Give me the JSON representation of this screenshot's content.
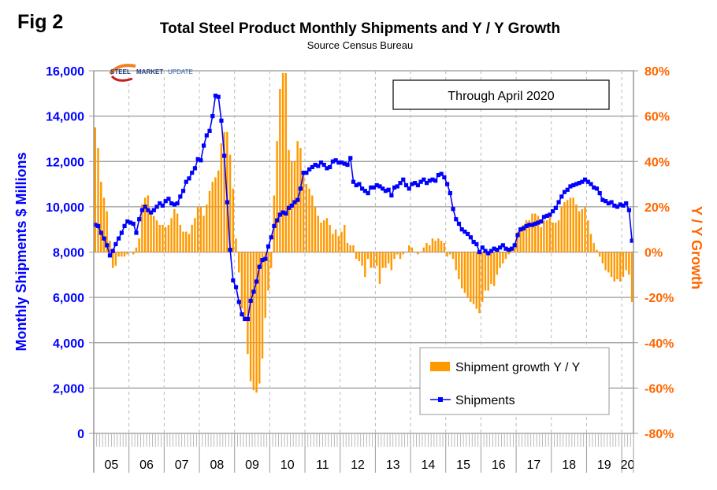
{
  "figure_label": "Fig 2",
  "logo_text": {
    "steel": "STEEL",
    "market": "MARKET",
    "update": "UPDATE"
  },
  "chart_data": {
    "type": "bar+line",
    "title": "Total Steel Product Monthly Shipments and Y / Y Growth",
    "subtitle": "Source Census Bureau",
    "annotation": "Through April 2020",
    "ylabel_left": "Monthly Shipments $ Millions",
    "ylabel_right": "Y / Y Growth",
    "ylim_left": [
      0,
      16000
    ],
    "ylim_right": [
      -80,
      80
    ],
    "yticks_left": [
      "0",
      "2,000",
      "4,000",
      "6,000",
      "8,000",
      "10,000",
      "12,000",
      "14,000",
      "16,000"
    ],
    "yticks_right": [
      "-80%",
      "-60%",
      "-40%",
      "-20%",
      "0%",
      "20%",
      "40%",
      "60%",
      "80%"
    ],
    "xticks": [
      "05",
      "06",
      "07",
      "08",
      "09",
      "10",
      "11",
      "12",
      "13",
      "14",
      "15",
      "16",
      "17",
      "18",
      "19",
      "20"
    ],
    "start": "2005-01",
    "end": "2020-04",
    "grid": true,
    "legend_position": "bottom-right",
    "colors": {
      "bars": "#FF9900",
      "line": "#0000FF",
      "left_axis": "#0000FF",
      "right_axis": "#FF6600"
    },
    "series": [
      {
        "name": "Shipment growth Y / Y",
        "type": "bar",
        "axis": "right",
        "unit": "%",
        "values": [
          55,
          46,
          31,
          24,
          18,
          5,
          -7,
          -6,
          -2,
          -2,
          -2,
          -1,
          0,
          -1,
          2,
          6,
          21,
          24,
          25,
          18,
          16,
          14,
          12,
          12,
          11,
          12,
          15,
          19,
          17,
          12,
          9,
          9,
          8,
          12,
          15,
          20,
          20,
          16,
          21,
          27,
          31,
          33,
          36,
          48,
          53,
          53,
          43,
          28,
          6,
          -9,
          -25,
          -30,
          -45,
          -57,
          -61,
          -62,
          -58,
          -47,
          -29,
          -17,
          -7,
          25,
          49,
          72,
          79,
          79,
          45,
          40,
          40,
          49,
          46,
          35,
          30,
          28,
          25,
          20,
          16,
          13,
          14,
          15,
          12,
          8,
          10,
          7,
          9,
          12,
          4,
          3,
          3,
          -3,
          -4,
          -6,
          -11,
          -3,
          -7,
          -7,
          -6,
          -14,
          -7,
          -7,
          -5,
          -8,
          -3,
          -1,
          -3,
          -1,
          0,
          3,
          2,
          0,
          -1,
          0,
          2,
          4,
          3,
          6,
          5,
          6,
          5,
          4,
          -2,
          -1,
          -3,
          -8,
          -12,
          -16,
          -18,
          -20,
          -22,
          -23,
          -25,
          -27,
          -22,
          -17,
          -17,
          -14,
          -15,
          -10,
          -7,
          -5,
          -3,
          -1,
          1,
          2,
          9,
          11,
          12,
          14,
          14,
          17,
          17,
          16,
          11,
          14,
          14,
          16,
          13,
          13,
          14,
          20,
          22,
          23,
          24,
          24,
          21,
          18,
          19,
          20,
          14,
          8,
          4,
          1,
          -2,
          -5,
          -8,
          -9,
          -11,
          -13,
          -12,
          -13,
          -11,
          -8,
          -10,
          -22
        ]
      },
      {
        "name": "Shipments",
        "type": "line",
        "axis": "left",
        "unit": "$ Millions",
        "values": [
          9200,
          9150,
          8850,
          8600,
          8300,
          7850,
          8050,
          8350,
          8600,
          8850,
          9150,
          9350,
          9300,
          9250,
          8850,
          9450,
          9850,
          10000,
          9850,
          9750,
          9850,
          10000,
          10150,
          10050,
          10250,
          10350,
          10150,
          10100,
          10150,
          10450,
          10700,
          11100,
          11250,
          11500,
          11700,
          12100,
          12050,
          12700,
          13150,
          13350,
          14000,
          14900,
          14850,
          13800,
          12250,
          10200,
          8100,
          6750,
          6450,
          5800,
          5250,
          5050,
          5050,
          5850,
          6250,
          6700,
          7350,
          7650,
          7700,
          8250,
          8650,
          9150,
          9400,
          9650,
          9750,
          9700,
          9950,
          10050,
          10200,
          10300,
          10800,
          11500,
          11500,
          11650,
          11750,
          11850,
          11800,
          11950,
          11850,
          11700,
          11750,
          12000,
          12050,
          11950,
          11950,
          11900,
          11850,
          12150,
          11100,
          10950,
          11000,
          10800,
          10700,
          10600,
          10850,
          10850,
          10950,
          10900,
          10800,
          10700,
          10750,
          10500,
          10850,
          10900,
          11050,
          11200,
          10950,
          10800,
          11000,
          11050,
          10950,
          11100,
          11200,
          11050,
          11150,
          11200,
          11150,
          11400,
          11450,
          11300,
          11000,
          10600,
          9900,
          9450,
          9250,
          9000,
          8900,
          8800,
          8650,
          8450,
          8350,
          8000,
          8200,
          8050,
          7950,
          8050,
          8150,
          8100,
          8200,
          8300,
          8150,
          8100,
          8150,
          8300,
          8750,
          9000,
          9050,
          9150,
          9200,
          9200,
          9250,
          9300,
          9350,
          9550,
          9600,
          9650,
          9800,
          9950,
          10200,
          10450,
          10650,
          10750,
          10900,
          10950,
          11000,
          11050,
          11100,
          11200,
          11100,
          11000,
          10850,
          10800,
          10600,
          10300,
          10250,
          10150,
          10200,
          10050,
          10000,
          10100,
          10050,
          10150,
          9850,
          8500
        ]
      }
    ]
  }
}
